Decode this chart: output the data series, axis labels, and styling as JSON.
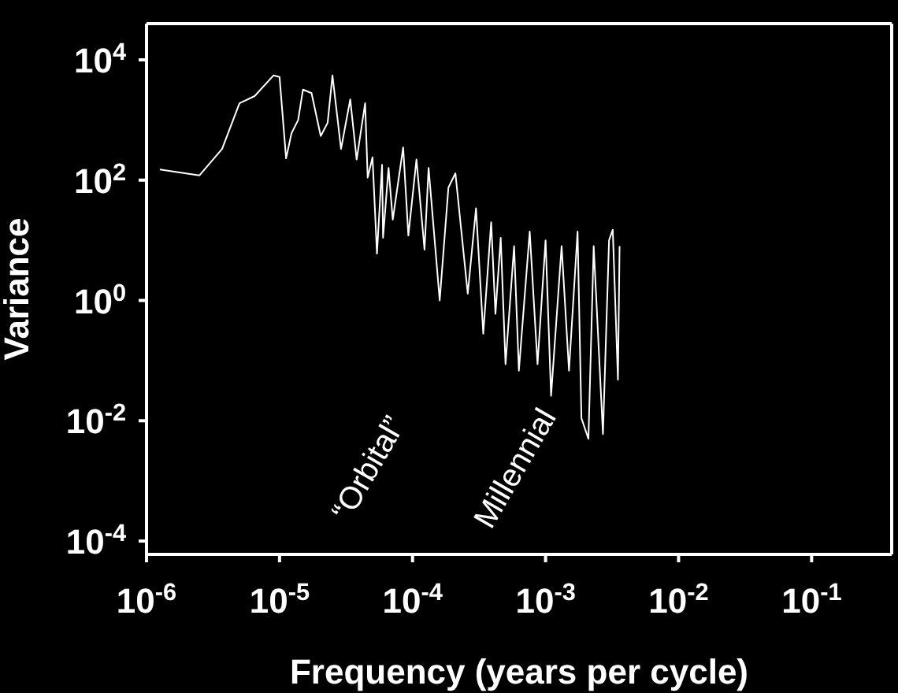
{
  "chart_data": {
    "type": "line",
    "xlabel": "Frequency (years per cycle)",
    "ylabel": "Variance",
    "log": "xy",
    "xlim": [
      1e-06,
      0.4
    ],
    "ylim": [
      6e-05,
      40000
    ],
    "xticks": [
      {
        "value": 1e-06,
        "label": "10$^{-6}$"
      },
      {
        "value": 1e-05,
        "label": "10$^{-5}$"
      },
      {
        "value": 0.0001,
        "label": "10$^{-4}$"
      },
      {
        "value": 0.001,
        "label": "10$^{-3}$"
      },
      {
        "value": 0.01,
        "label": "10$^{-2}$"
      },
      {
        "value": 0.1,
        "label": "10$^{-1}$"
      }
    ],
    "yticks": [
      {
        "value": 0.0001,
        "label": "10$^{-4}$"
      },
      {
        "value": 0.01,
        "label": "10$^{-2}$"
      },
      {
        "value": 1,
        "label": "10$^{0}$"
      },
      {
        "value": 100,
        "label": "10$^{2}$"
      },
      {
        "value": 10000,
        "label": "10$^{4}$"
      }
    ],
    "annotations": [
      "“Orbital”",
      "Millennial"
    ],
    "series": [
      {
        "color": "#ffffff",
        "x": [
          1.26e-06,
          2.5e-06,
          3.7e-06,
          5e-06,
          6.5e-06,
          9e-06,
          1e-05,
          1.12e-05,
          1.23e-05,
          1.38e-05,
          1.5e-05,
          1.74e-05,
          2.04e-05,
          2.3e-05,
          2.5e-05,
          2.9e-05,
          3.4e-05,
          3.8e-05,
          4.4e-05,
          4.6e-05,
          5e-05,
          5.4e-05,
          5.9e-05,
          6e-05,
          6.6e-05,
          7.1e-05,
          8.5e-05,
          9.3e-05,
          0.000107,
          0.000123,
          0.000132,
          0.00016,
          0.000186,
          0.00021,
          0.00026,
          0.0003,
          0.00034,
          0.00039,
          0.00042,
          0.00046,
          0.0005,
          0.00058,
          0.00063,
          0.00076,
          0.00087,
          0.001,
          0.0011,
          0.00132,
          0.0015,
          0.00174,
          0.00186,
          0.0021,
          0.0023,
          0.0027,
          0.003,
          0.0032,
          0.0035,
          0.0036
        ],
        "values": [
          150,
          120,
          330,
          1900,
          2500,
          5500,
          5200,
          230,
          600,
          1000,
          3200,
          2800,
          540,
          900,
          5500,
          330,
          2200,
          220,
          1900,
          110,
          240,
          6,
          180,
          11,
          160,
          22,
          350,
          12,
          220,
          7,
          160,
          1,
          75,
          130,
          1.3,
          34,
          0.28,
          20,
          0.6,
          11,
          0.087,
          8,
          0.068,
          14,
          0.087,
          10,
          0.026,
          8,
          0.068,
          14,
          0.011,
          0.005,
          8,
          0.006,
          10,
          15,
          0.048,
          8
        ]
      }
    ]
  }
}
